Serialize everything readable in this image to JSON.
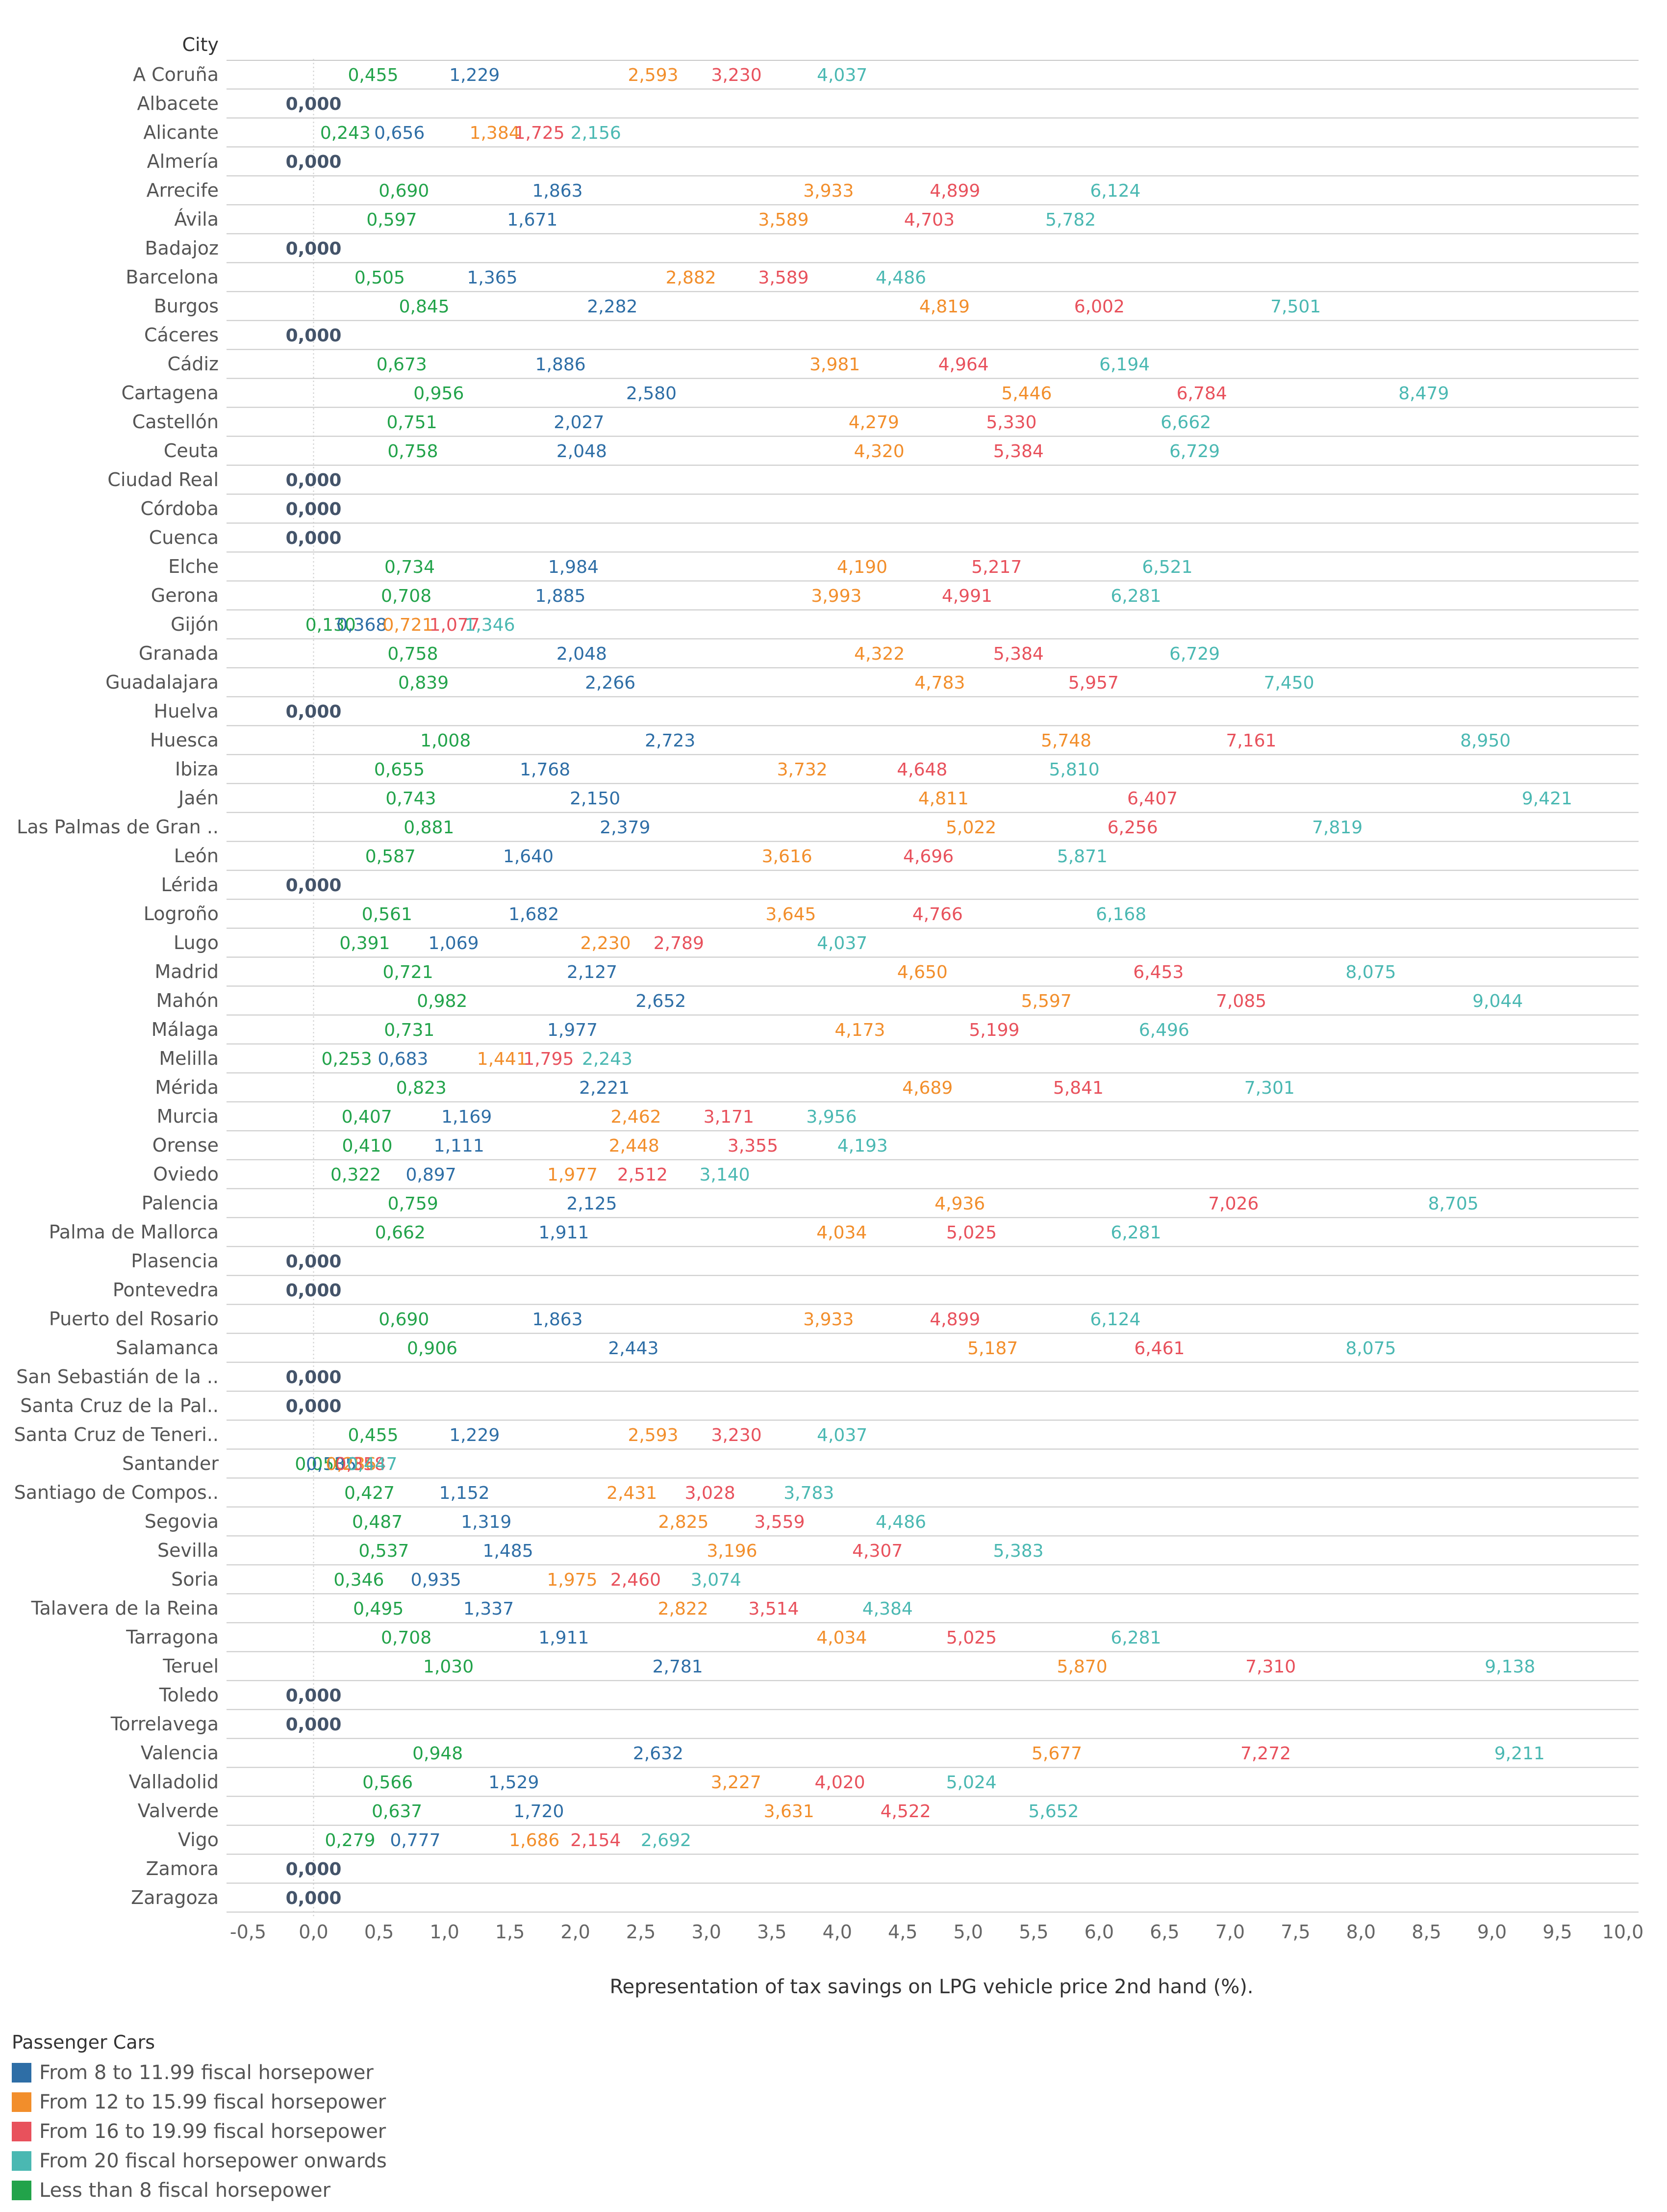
{
  "chart_data": {
    "type": "scatter",
    "orientation": "horizontal",
    "row_header": "City",
    "xlabel": "Representation of tax savings on LPG vehicle price 2nd hand (%).",
    "xlim": [
      -0.5,
      10.0
    ],
    "x_ticks": [
      "-0,5",
      "0,0",
      "0,5",
      "1,0",
      "1,5",
      "2,0",
      "2,5",
      "3,0",
      "3,5",
      "4,0",
      "4,5",
      "5,0",
      "5,5",
      "6,0",
      "6,5",
      "7,0",
      "7,5",
      "8,0",
      "8,5",
      "9,0",
      "9,5",
      "10,0"
    ],
    "series_order": [
      "lt8",
      "8to12",
      "12to16",
      "16to20",
      "20plus"
    ],
    "legend_title": "Passenger Cars",
    "legend": [
      {
        "key": "8to12",
        "label": "From 8 to 11.99 fiscal horsepower",
        "color": "#2e6ea6"
      },
      {
        "key": "12to16",
        "label": "From 12 to 15.99 fiscal horsepower",
        "color": "#f28e2b"
      },
      {
        "key": "16to20",
        "label": "From 16 to 19.99 fiscal horsepower",
        "color": "#e8515c"
      },
      {
        "key": "20plus",
        "label": "From 20 fiscal horsepower onwards",
        "color": "#4ab8b2"
      },
      {
        "key": "lt8",
        "label": "Less than 8 fiscal horsepower",
        "color": "#22a34a"
      }
    ],
    "zero_color": "#44546a",
    "rows": [
      {
        "city": "A Coruña",
        "values": [
          "0,455",
          "1,229",
          "2,593",
          "3,230",
          "4,037"
        ]
      },
      {
        "city": "Albacete",
        "values": [
          "0,000"
        ]
      },
      {
        "city": "Alicante",
        "values": [
          "0,243",
          "0,656",
          "1,384",
          "1,725",
          "2,156"
        ]
      },
      {
        "city": "Almería",
        "values": [
          "0,000"
        ]
      },
      {
        "city": "Arrecife",
        "values": [
          "0,690",
          "1,863",
          "3,933",
          "4,899",
          "6,124"
        ]
      },
      {
        "city": "Ávila",
        "values": [
          "0,597",
          "1,671",
          "3,589",
          "4,703",
          "5,782"
        ]
      },
      {
        "city": "Badajoz",
        "values": [
          "0,000"
        ]
      },
      {
        "city": "Barcelona",
        "values": [
          "0,505",
          "1,365",
          "2,882",
          "3,589",
          "4,486"
        ]
      },
      {
        "city": "Burgos",
        "values": [
          "0,845",
          "2,282",
          "4,819",
          "6,002",
          "7,501"
        ]
      },
      {
        "city": "Cáceres",
        "values": [
          "0,000"
        ]
      },
      {
        "city": "Cádiz",
        "values": [
          "0,673",
          "1,886",
          "3,981",
          "4,964",
          "6,194"
        ]
      },
      {
        "city": "Cartagena",
        "values": [
          "0,956",
          "2,580",
          "5,446",
          "6,784",
          "8,479"
        ]
      },
      {
        "city": "Castellón",
        "values": [
          "0,751",
          "2,027",
          "4,279",
          "5,330",
          "6,662"
        ]
      },
      {
        "city": "Ceuta",
        "values": [
          "0,758",
          "2,048",
          "4,320",
          "5,384",
          "6,729"
        ]
      },
      {
        "city": "Ciudad Real",
        "values": [
          "0,000"
        ]
      },
      {
        "city": "Córdoba",
        "values": [
          "0,000"
        ]
      },
      {
        "city": "Cuenca",
        "values": [
          "0,000"
        ]
      },
      {
        "city": "Elche",
        "values": [
          "0,734",
          "1,984",
          "4,190",
          "5,217",
          "6,521"
        ]
      },
      {
        "city": "Gerona",
        "values": [
          "0,708",
          "1,885",
          "3,993",
          "4,991",
          "6,281"
        ]
      },
      {
        "city": "Gijón",
        "values": [
          "0,130",
          "0,368",
          "0,721",
          "1,077",
          "1,346"
        ]
      },
      {
        "city": "Granada",
        "values": [
          "0,758",
          "2,048",
          "4,322",
          "5,384",
          "6,729"
        ]
      },
      {
        "city": "Guadalajara",
        "values": [
          "0,839",
          "2,266",
          "4,783",
          "5,957",
          "7,450"
        ]
      },
      {
        "city": "Huelva",
        "values": [
          "0,000"
        ]
      },
      {
        "city": "Huesca",
        "values": [
          "1,008",
          "2,723",
          "5,748",
          "7,161",
          "8,950"
        ]
      },
      {
        "city": "Ibiza",
        "values": [
          "0,655",
          "1,768",
          "3,732",
          "4,648",
          "5,810"
        ]
      },
      {
        "city": "Jaén",
        "values": [
          "0,743",
          "2,150",
          "4,811",
          "6,407",
          "9,421"
        ]
      },
      {
        "city": "Las Palmas de Gran ..",
        "values": [
          "0,881",
          "2,379",
          "5,022",
          "6,256",
          "7,819"
        ]
      },
      {
        "city": "León",
        "values": [
          "0,587",
          "1,640",
          "3,616",
          "4,696",
          "5,871"
        ]
      },
      {
        "city": "Lérida",
        "values": [
          "0,000"
        ]
      },
      {
        "city": "Logroño",
        "values": [
          "0,561",
          "1,682",
          "3,645",
          "4,766",
          "6,168"
        ]
      },
      {
        "city": "Lugo",
        "values": [
          "0,391",
          "1,069",
          "2,230",
          "2,789",
          "4,037"
        ]
      },
      {
        "city": "Madrid",
        "values": [
          "0,721",
          "2,127",
          "4,650",
          "6,453",
          "8,075"
        ]
      },
      {
        "city": "Mahón",
        "values": [
          "0,982",
          "2,652",
          "5,597",
          "7,085",
          "9,044"
        ]
      },
      {
        "city": "Málaga",
        "values": [
          "0,731",
          "1,977",
          "4,173",
          "5,199",
          "6,496"
        ]
      },
      {
        "city": "Melilla",
        "values": [
          "0,253",
          "0,683",
          "1,441",
          "1,795",
          "2,243"
        ]
      },
      {
        "city": "Mérida",
        "values": [
          "0,823",
          "2,221",
          "4,689",
          "5,841",
          "7,301"
        ]
      },
      {
        "city": "Murcia",
        "values": [
          "0,407",
          "1,169",
          "2,462",
          "3,171",
          "3,956"
        ]
      },
      {
        "city": "Orense",
        "values": [
          "0,410",
          "1,111",
          "2,448",
          "3,355",
          "4,193"
        ]
      },
      {
        "city": "Oviedo",
        "values": [
          "0,322",
          "0,897",
          "1,977",
          "2,512",
          "3,140"
        ]
      },
      {
        "city": "Palencia",
        "values": [
          "0,759",
          "2,125",
          "4,936",
          "7,026",
          "8,705"
        ]
      },
      {
        "city": "Palma de Mallorca",
        "values": [
          "0,662",
          "1,911",
          "4,034",
          "5,025",
          "6,281"
        ]
      },
      {
        "city": "Plasencia",
        "values": [
          "0,000"
        ]
      },
      {
        "city": "Pontevedra",
        "values": [
          "0,000"
        ]
      },
      {
        "city": "Puerto del Rosario",
        "values": [
          "0,690",
          "1,863",
          "3,933",
          "4,899",
          "6,124"
        ]
      },
      {
        "city": "Salamanca",
        "values": [
          "0,906",
          "2,443",
          "5,187",
          "6,461",
          "8,075"
        ]
      },
      {
        "city": "San Sebastián de la ..",
        "values": [
          "0,000"
        ]
      },
      {
        "city": "Santa Cruz de la Pal..",
        "values": [
          "0,000"
        ]
      },
      {
        "city": "Santa Cruz de Teneri..",
        "values": [
          "0,455",
          "1,229",
          "2,593",
          "3,230",
          "4,037"
        ]
      },
      {
        "city": "Santander",
        "values": [
          "0,050",
          "0,135",
          "0,286",
          "0,358",
          "0,447"
        ]
      },
      {
        "city": "Santiago de Compos..",
        "values": [
          "0,427",
          "1,152",
          "2,431",
          "3,028",
          "3,783"
        ]
      },
      {
        "city": "Segovia",
        "values": [
          "0,487",
          "1,319",
          "2,825",
          "3,559",
          "4,486"
        ]
      },
      {
        "city": "Sevilla",
        "values": [
          "0,537",
          "1,485",
          "3,196",
          "4,307",
          "5,383"
        ]
      },
      {
        "city": "Soria",
        "values": [
          "0,346",
          "0,935",
          "1,975",
          "2,460",
          "3,074"
        ]
      },
      {
        "city": "Talavera de la Reina",
        "values": [
          "0,495",
          "1,337",
          "2,822",
          "3,514",
          "4,384"
        ]
      },
      {
        "city": "Tarragona",
        "values": [
          "0,708",
          "1,911",
          "4,034",
          "5,025",
          "6,281"
        ]
      },
      {
        "city": "Teruel",
        "values": [
          "1,030",
          "2,781",
          "5,870",
          "7,310",
          "9,138"
        ]
      },
      {
        "city": "Toledo",
        "values": [
          "0,000"
        ]
      },
      {
        "city": "Torrelavega",
        "values": [
          "0,000"
        ]
      },
      {
        "city": "Valencia",
        "values": [
          "0,948",
          "2,632",
          "5,677",
          "7,272",
          "9,211"
        ]
      },
      {
        "city": "Valladolid",
        "values": [
          "0,566",
          "1,529",
          "3,227",
          "4,020",
          "5,024"
        ]
      },
      {
        "city": "Valverde",
        "values": [
          "0,637",
          "1,720",
          "3,631",
          "4,522",
          "5,652"
        ]
      },
      {
        "city": "Vigo",
        "values": [
          "0,279",
          "0,777",
          "1,686",
          "2,154",
          "2,692"
        ]
      },
      {
        "city": "Zamora",
        "values": [
          "0,000"
        ]
      },
      {
        "city": "Zaragoza",
        "values": [
          "0,000"
        ]
      }
    ]
  }
}
